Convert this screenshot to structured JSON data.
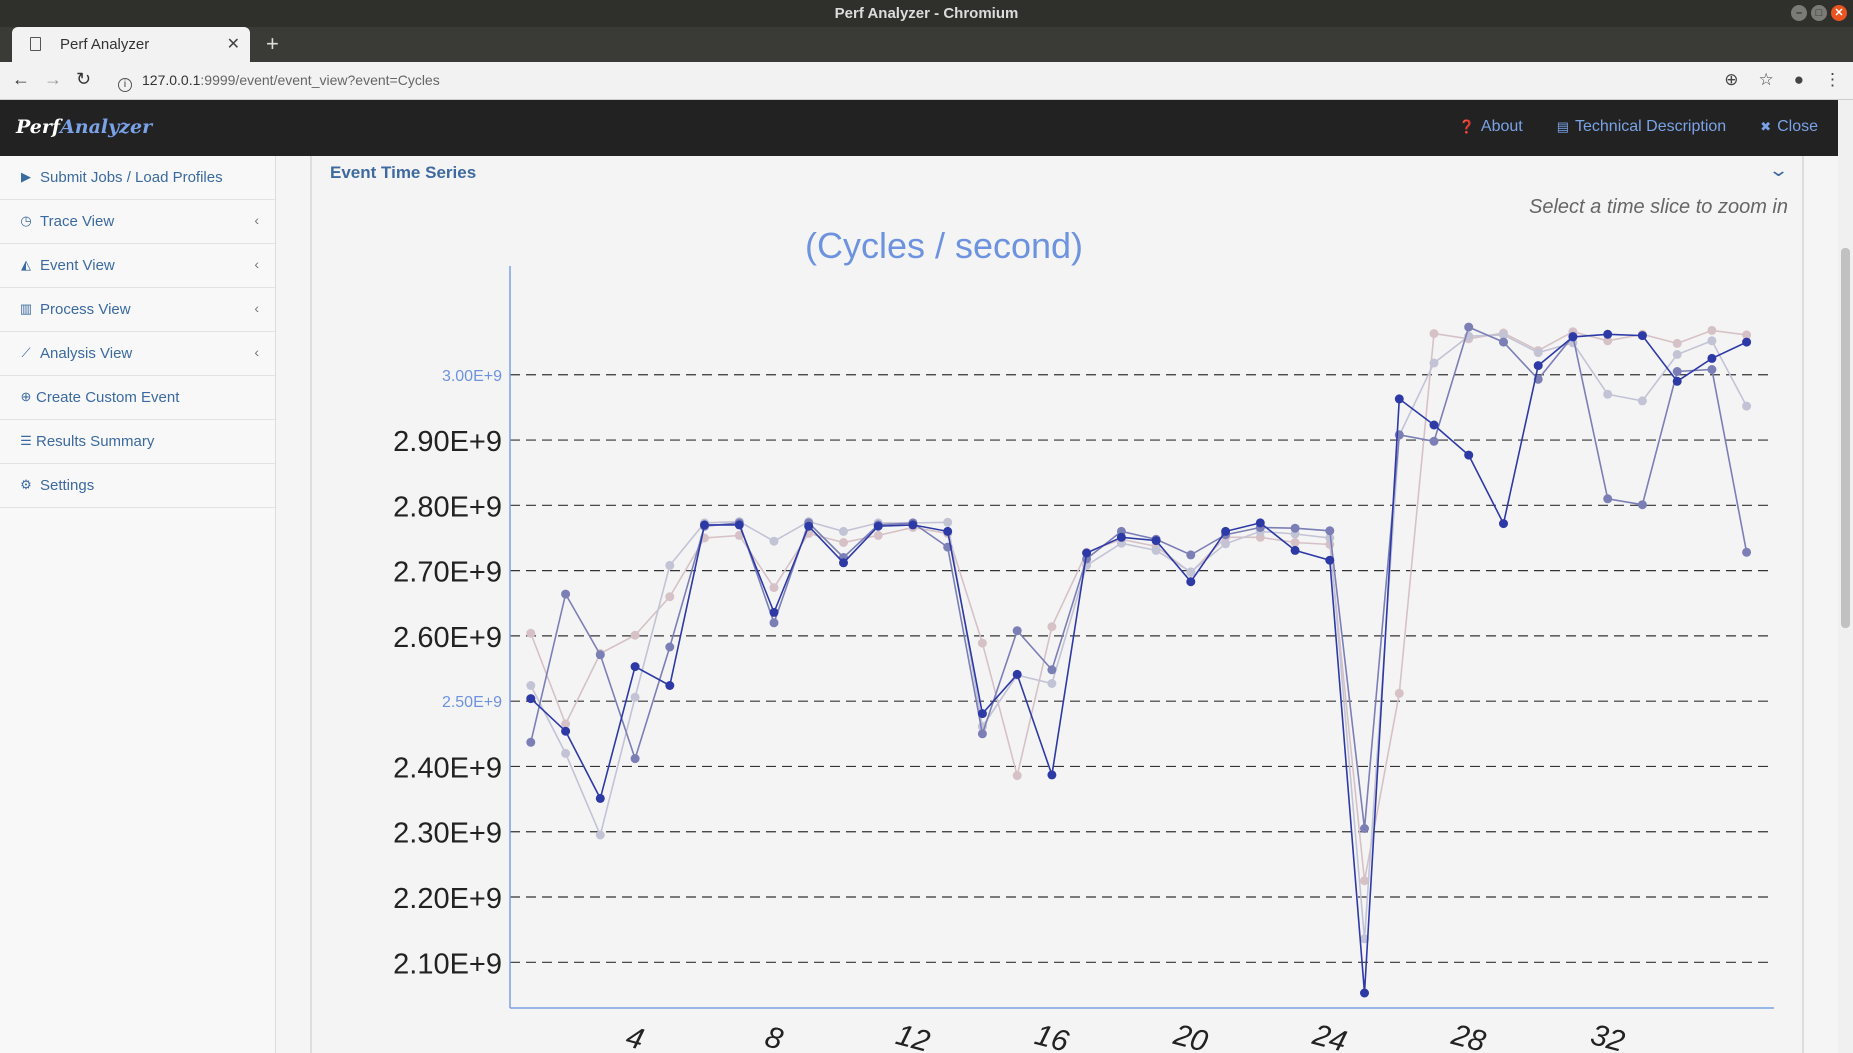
{
  "window": {
    "title": "Perf Analyzer - Chromium"
  },
  "browser": {
    "tab_title": "Perf Analyzer",
    "url_host": "127.0.0.1",
    "url_rest": ":9999/event/event_view?event=Cycles"
  },
  "navbar": {
    "brand_a": "Perf",
    "brand_b": "Analyzer",
    "about": "About",
    "tech": "Technical Description",
    "close": "Close"
  },
  "sidebar": {
    "items": [
      {
        "label": "Submit Jobs / Load Profiles",
        "icon": "play-icon"
      },
      {
        "label": "Trace View",
        "icon": "clock-icon"
      },
      {
        "label": "Event View",
        "icon": "area-chart-icon"
      },
      {
        "label": "Process View",
        "icon": "bar-chart-icon"
      },
      {
        "label": "Analysis View",
        "icon": "line-chart-icon"
      },
      {
        "label": "Create Custom Event",
        "icon": "plus-circle-icon"
      },
      {
        "label": "Results Summary",
        "icon": "list-icon"
      },
      {
        "label": "Settings",
        "icon": "gear-icon"
      }
    ]
  },
  "panel": {
    "title": "Event Time Series",
    "hint": "Select a time slice to zoom in"
  },
  "chart_data": {
    "type": "line",
    "title": "(Cycles / second)",
    "ylim": [
      2030000000.0,
      3090000000.0
    ],
    "xlim": [
      0.4,
      36.5
    ],
    "yticks": [
      {
        "value": 3000000000.0,
        "label": "3.00E+9",
        "small": true
      },
      {
        "value": 2900000000.0,
        "label": "2.90E+9",
        "small": false
      },
      {
        "value": 2800000000.0,
        "label": "2.80E+9",
        "small": false
      },
      {
        "value": 2700000000.0,
        "label": "2.70E+9",
        "small": false
      },
      {
        "value": 2600000000.0,
        "label": "2.60E+9",
        "small": false
      },
      {
        "value": 2500000000.0,
        "label": "2.50E+9",
        "small": true
      },
      {
        "value": 2400000000.0,
        "label": "2.40E+9",
        "small": false
      },
      {
        "value": 2300000000.0,
        "label": "2.30E+9",
        "small": false
      },
      {
        "value": 2200000000.0,
        "label": "2.20E+9",
        "small": false
      },
      {
        "value": 2100000000.0,
        "label": "2.10E+9",
        "small": false
      }
    ],
    "xticks": [
      4,
      8,
      12,
      16,
      20,
      24,
      28,
      32
    ],
    "x": [
      1,
      2,
      3,
      4,
      5,
      6,
      7,
      8,
      9,
      10,
      11,
      12,
      13,
      14,
      15,
      16,
      17,
      18,
      19,
      20,
      21,
      22,
      23,
      24,
      25,
      26,
      27,
      28,
      29,
      30,
      31,
      32,
      33,
      34,
      35,
      36
    ],
    "series": [
      {
        "color": "#2d3aa6",
        "values": [
          2.504,
          2.454,
          2.351,
          2.553,
          2.524,
          2.77,
          2.77,
          2.636,
          2.768,
          2.712,
          2.768,
          2.77,
          2.76,
          2.481,
          2.541,
          2.387,
          2.727,
          2.751,
          2.746,
          2.683,
          2.76,
          2.773,
          2.731,
          2.716,
          2.053,
          2.963,
          2.923,
          2.877,
          2.772,
          3.014,
          3.058,
          3.062,
          3.06,
          2.99,
          3.025,
          3.05
        ]
      },
      {
        "color": "#7b7fb5",
        "values": [
          2.437,
          2.664,
          2.571,
          2.412,
          2.583,
          2.768,
          2.773,
          2.62,
          2.773,
          2.72,
          2.77,
          2.773,
          2.736,
          2.45,
          2.608,
          2.548,
          2.718,
          2.76,
          2.748,
          2.724,
          2.755,
          2.766,
          2.765,
          2.761,
          2.305,
          2.908,
          2.898,
          3.073,
          3.05,
          2.993,
          3.059,
          2.81,
          2.801,
          3.005,
          3.008,
          2.728
        ]
      },
      {
        "color": "#c3c3d6",
        "values": [
          2.524,
          2.42,
          2.295,
          2.506,
          2.708,
          2.773,
          2.775,
          2.745,
          2.775,
          2.76,
          2.773,
          2.773,
          2.774,
          2.461,
          2.54,
          2.527,
          2.708,
          2.742,
          2.731,
          2.698,
          2.741,
          2.76,
          2.756,
          2.75,
          2.136,
          2.907,
          3.018,
          3.059,
          3.061,
          3.034,
          3.049,
          2.97,
          2.96,
          3.031,
          3.052,
          2.952
        ]
      },
      {
        "color": "#d6c2c6",
        "values": [
          2.604,
          2.465,
          2.573,
          2.601,
          2.66,
          2.75,
          2.754,
          2.674,
          2.757,
          2.743,
          2.754,
          2.766,
          2.757,
          2.589,
          2.386,
          2.614,
          2.728,
          2.748,
          2.737,
          2.697,
          2.751,
          2.751,
          2.743,
          2.74,
          2.225,
          2.512,
          3.063,
          3.055,
          3.064,
          3.037,
          3.066,
          3.052,
          3.062,
          3.048,
          3.068,
          3.061
        ]
      }
    ]
  }
}
